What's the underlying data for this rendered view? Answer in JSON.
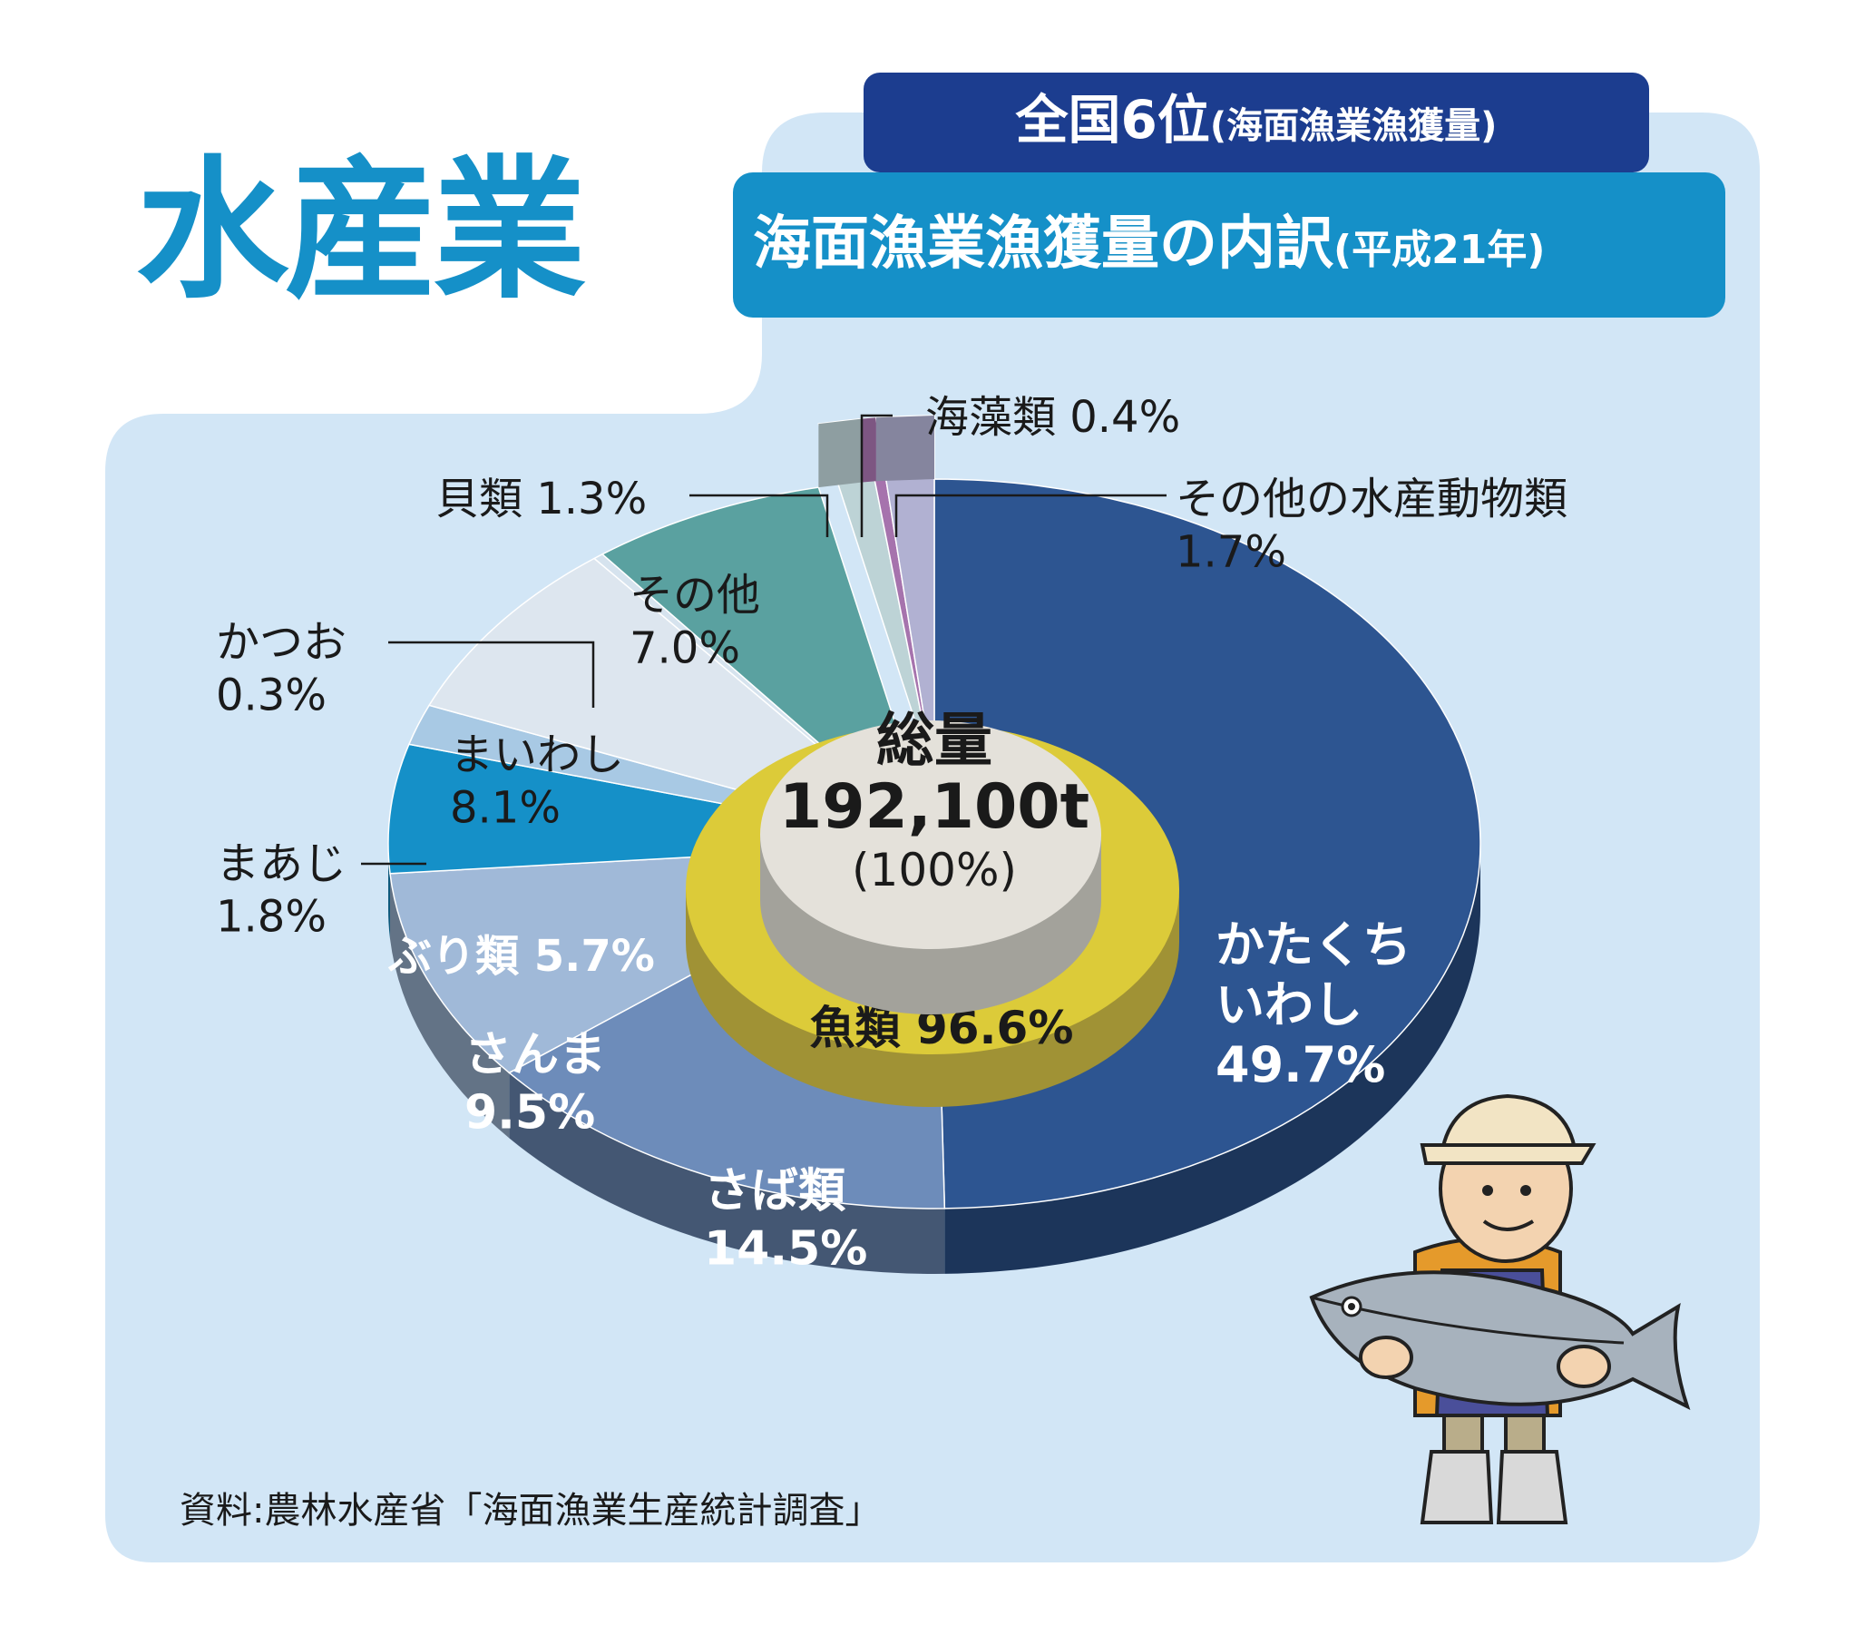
{
  "header": {
    "title": "水産業",
    "rank_main": "全国6位",
    "rank_sub": "(海面漁業漁獲量)",
    "subtitle_main": "海面漁業漁獲量の内訳",
    "subtitle_sub": "(平成21年)"
  },
  "center": {
    "label": "総量",
    "total": "192,100t",
    "percent": "(100%)",
    "ring_label": "魚類 96.6%"
  },
  "source": "資料:農林水産省「海面漁業生産統計調査」",
  "colors": {
    "background_panel": "#d2e6f6",
    "title_blue": "#1590c8",
    "rank_navy": "#1c3d8f",
    "fish_ring": "#dccb39",
    "center_disc": "#e4e1da"
  },
  "chart_data": {
    "type": "pie",
    "title": "海面漁業漁獲量の内訳",
    "total": "192,100t",
    "unit": "%",
    "slices": [
      {
        "name": "かたくちいわし",
        "value": 49.7,
        "group": "魚類",
        "color": "#2d5591",
        "label_lines": [
          "かたくち",
          "いわし",
          "49.7%"
        ]
      },
      {
        "name": "さば類",
        "value": 14.5,
        "group": "魚類",
        "color": "#6d8cba",
        "label_lines": [
          "さば類",
          "14.5%"
        ]
      },
      {
        "name": "さんま",
        "value": 9.5,
        "group": "魚類",
        "color": "#a0b9d8",
        "label_lines": [
          "さんま",
          "9.5%"
        ]
      },
      {
        "name": "ぶり類",
        "value": 5.7,
        "group": "魚類",
        "color": "#1590c8",
        "label_lines": [
          "ぶり類 5.7%"
        ]
      },
      {
        "name": "まあじ",
        "value": 1.8,
        "group": "魚類",
        "color": "#a8c9e4",
        "label_lines": [
          "まあじ",
          "1.8%"
        ]
      },
      {
        "name": "まいわし",
        "value": 8.1,
        "group": "魚類",
        "color": "#dde6ef",
        "label_lines": [
          "まいわし",
          "8.1%"
        ]
      },
      {
        "name": "かつお",
        "value": 0.3,
        "group": "魚類",
        "color": "#d6e3ee",
        "label_lines": [
          "かつお",
          "0.3%"
        ]
      },
      {
        "name": "その他",
        "value": 7.0,
        "group": "魚類",
        "color": "#5aa1a0",
        "label_lines": [
          "その他",
          "7.0%"
        ]
      },
      {
        "name": "貝類",
        "value": 1.3,
        "group": "",
        "color": "#bdd3d6",
        "label_lines": [
          "貝類 1.3%"
        ]
      },
      {
        "name": "海藻類",
        "value": 0.4,
        "group": "",
        "color": "#a673ad",
        "label_lines": [
          "海藻類 0.4%"
        ]
      },
      {
        "name": "その他の水産動物類",
        "value": 1.7,
        "group": "",
        "color": "#b1b1d2",
        "label_lines": [
          "その他の水産動物類",
          "1.7%"
        ]
      }
    ]
  }
}
